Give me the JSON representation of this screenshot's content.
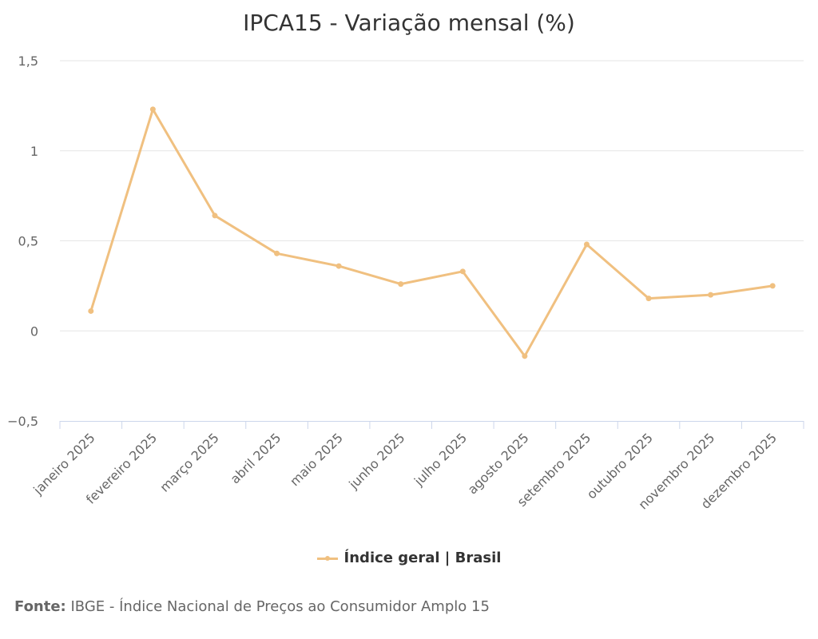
{
  "chart_data": {
    "type": "line",
    "title": "IPCA15 - Variação mensal (%)",
    "categories": [
      "janeiro 2025",
      "fevereiro 2025",
      "março 2025",
      "abril 2025",
      "maio 2025",
      "junho 2025",
      "julho 2025",
      "agosto 2025",
      "setembro 2025",
      "outubro 2025",
      "novembro 2025",
      "dezembro 2025"
    ],
    "series": [
      {
        "name": "Índice geral | Brasil",
        "values": [
          0.11,
          1.23,
          0.64,
          0.43,
          0.36,
          0.26,
          0.33,
          -0.14,
          0.48,
          0.18,
          0.2,
          0.25
        ],
        "color": "#f0c080"
      }
    ],
    "yticks": [
      {
        "v": 1.5,
        "label": "1,5"
      },
      {
        "v": 1,
        "label": "1"
      },
      {
        "v": 0.5,
        "label": "0,5"
      },
      {
        "v": 0,
        "label": "0"
      },
      {
        "v": -0.5,
        "label": "−0,5"
      }
    ],
    "ylim": [
      -0.5,
      1.5
    ],
    "grid": true,
    "legend": "bottom-center"
  },
  "source": {
    "label": "Fonte:",
    "text": "IBGE - Índice Nacional de Preços ao Consumidor Amplo 15"
  }
}
